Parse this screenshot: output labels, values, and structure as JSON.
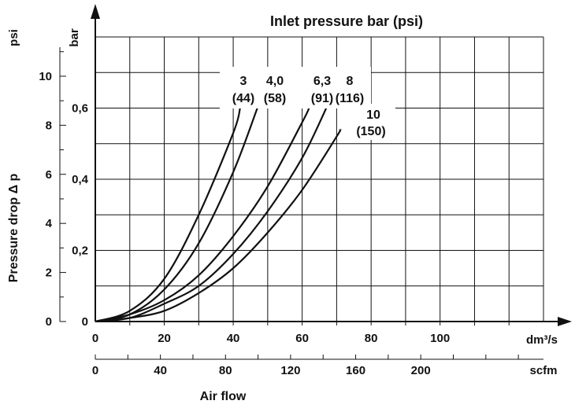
{
  "chart_data": {
    "type": "line",
    "title": "Inlet pressure bar (psi)",
    "ylabel": "Pressure drop Δ p",
    "xlabel": "Air flow",
    "x_unit_primary": "dm³/s",
    "x_unit_secondary": "scfm",
    "y_unit_bar": "bar",
    "y_unit_psi": "psi",
    "xlim": [
      0,
      130
    ],
    "ylim_bar": [
      0,
      0.8
    ],
    "grid": true,
    "x_ticks_primary": [
      {
        "value": 0,
        "label": "0"
      },
      {
        "value": 20,
        "label": "20"
      },
      {
        "value": 40,
        "label": "40"
      },
      {
        "value": 60,
        "label": "60"
      },
      {
        "value": 80,
        "label": "80"
      },
      {
        "value": 100,
        "label": "100"
      }
    ],
    "x_ticks_secondary": [
      {
        "value": 0,
        "label": "0"
      },
      {
        "value": 40,
        "label": "40"
      },
      {
        "value": 80,
        "label": "80"
      },
      {
        "value": 120,
        "label": "120"
      },
      {
        "value": 160,
        "label": "160"
      },
      {
        "value": 200,
        "label": "200"
      }
    ],
    "y_ticks_bar": [
      {
        "value": 0,
        "label": "0"
      },
      {
        "value": 0.2,
        "label": "0,2"
      },
      {
        "value": 0.4,
        "label": "0,4"
      },
      {
        "value": 0.6,
        "label": "0,6"
      }
    ],
    "y_ticks_psi": [
      {
        "value": 0,
        "label": "0"
      },
      {
        "value": 2,
        "label": "2"
      },
      {
        "value": 4,
        "label": "4"
      },
      {
        "value": 6,
        "label": "6"
      },
      {
        "value": 8,
        "label": "8"
      },
      {
        "value": 10,
        "label": "10"
      }
    ],
    "series": [
      {
        "name_bar": "3",
        "name_psi": "(44)",
        "x": [
          0,
          10,
          20,
          30,
          40,
          42
        ],
        "y": [
          0,
          0.03,
          0.12,
          0.3,
          0.53,
          0.6
        ]
      },
      {
        "name_bar": "4,0",
        "name_psi": "(58)",
        "x": [
          0,
          10,
          20,
          30,
          40,
          47
        ],
        "y": [
          0,
          0.02,
          0.09,
          0.22,
          0.42,
          0.6
        ]
      },
      {
        "name_bar": "6,3",
        "name_psi": "(91)",
        "x": [
          0,
          10,
          20,
          30,
          40,
          50,
          60,
          62
        ],
        "y": [
          0,
          0.02,
          0.06,
          0.13,
          0.24,
          0.38,
          0.56,
          0.6
        ]
      },
      {
        "name_bar": "8",
        "name_psi": "(116)",
        "x": [
          0,
          10,
          20,
          30,
          40,
          50,
          60,
          67
        ],
        "y": [
          0,
          0.01,
          0.05,
          0.1,
          0.19,
          0.31,
          0.46,
          0.6
        ]
      },
      {
        "name_bar": "10",
        "name_psi": "(150)",
        "x": [
          0,
          10,
          20,
          30,
          40,
          50,
          60,
          70,
          71
        ],
        "y": [
          0,
          0.01,
          0.03,
          0.08,
          0.15,
          0.25,
          0.37,
          0.52,
          0.54
        ]
      }
    ]
  }
}
